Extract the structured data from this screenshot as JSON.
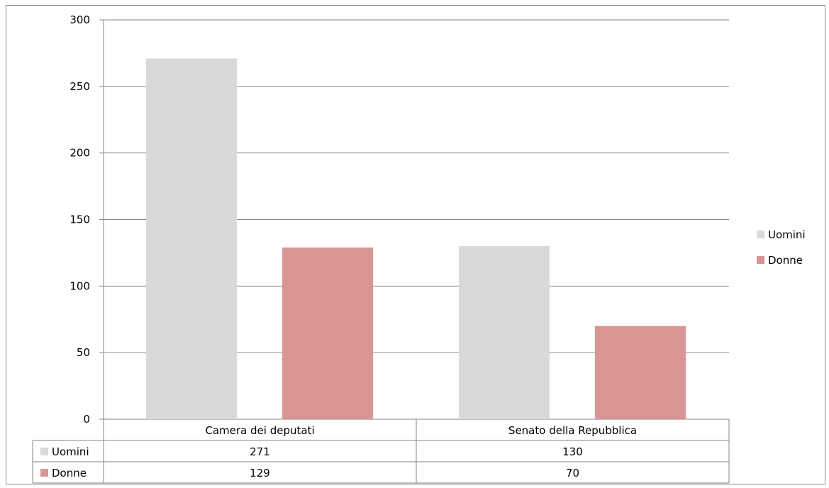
{
  "chart_data": {
    "type": "bar",
    "categories": [
      "Camera dei deputati",
      "Senato della Repubblica"
    ],
    "series": [
      {
        "name": "Uomini",
        "values": [
          271,
          130
        ],
        "color": "#d9d9d9"
      },
      {
        "name": "Donne",
        "values": [
          129,
          70
        ],
        "color": "#d99594"
      }
    ],
    "ylim": [
      0,
      300
    ],
    "yticks": [
      0,
      50,
      100,
      150,
      200,
      250,
      300
    ],
    "grid": true,
    "legend": "right",
    "data_table": true,
    "title": "",
    "xlabel": "",
    "ylabel": ""
  }
}
